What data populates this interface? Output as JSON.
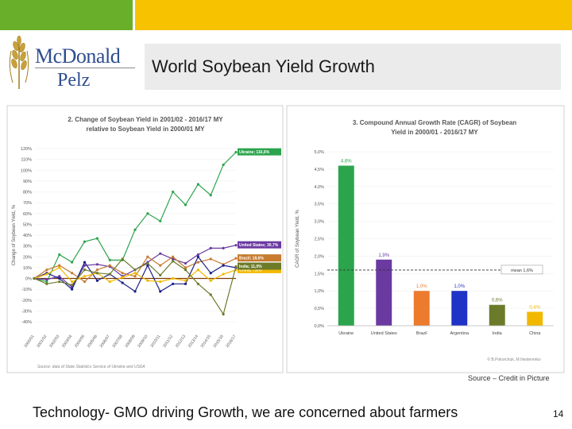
{
  "header": {
    "brand_line1": "McDonald",
    "brand_line2": "Pelz",
    "title": "World Soybean Yield Growth",
    "colors": {
      "green_bar": "#6aaf2a",
      "yellow_bar": "#f7c200",
      "brand_text": "#2e4d8f"
    }
  },
  "chart_data": [
    {
      "type": "line",
      "title": "2. Change of Soybean Yield in 2001/02 - 2016/17 MY relative to Soybean Yield in 2000/01 MY",
      "ylabel": "Change of Soybean Yield, %",
      "xlabel": "",
      "ylim": [
        -40,
        120
      ],
      "yticks": [
        -40,
        -30,
        -20,
        -10,
        0,
        10,
        20,
        30,
        40,
        50,
        60,
        70,
        80,
        90,
        100,
        110,
        120
      ],
      "categories": [
        "2000/01",
        "2001/02",
        "2002/03",
        "2003/04",
        "2004/05",
        "2005/06",
        "2006/07",
        "2007/08",
        "2008/09",
        "2009/10",
        "2010/11",
        "2011/12",
        "2012/13",
        "2013/14",
        "2014/15",
        "2015/16",
        "2016/17"
      ],
      "series": [
        {
          "name": "Ukraine; 116,6%",
          "color": "#2ca44d",
          "values": [
            0,
            -3,
            22,
            15,
            34,
            37,
            17,
            17,
            45,
            60,
            53,
            80,
            68,
            87,
            77,
            105,
            116.6
          ]
        },
        {
          "name": "United States; 30,7%",
          "color": "#6a3aa0",
          "values": [
            0,
            -1,
            2,
            -8,
            12,
            13,
            11,
            2,
            8,
            15,
            23,
            18,
            14,
            22,
            28,
            28,
            30.7
          ]
        },
        {
          "name": "Brazil; 18,6%",
          "color": "#c77b2f",
          "values": [
            0,
            8,
            12,
            5,
            -3,
            8,
            12,
            5,
            2,
            20,
            12,
            20,
            10,
            15,
            18,
            13,
            18.6
          ]
        },
        {
          "name": "Argentina; 10,0%",
          "color": "#1b1f8a",
          "values": [
            0,
            5,
            0,
            -10,
            15,
            -2,
            4,
            -4,
            -12,
            12,
            -12,
            -5,
            -5,
            20,
            5,
            12,
            10.0
          ]
        },
        {
          "name": "China; 7,8%",
          "color": "#f2b800",
          "values": [
            0,
            4,
            10,
            -3,
            2,
            5,
            -3,
            1,
            5,
            -2,
            -3,
            0,
            -2,
            8,
            -2,
            4,
            7.8
          ]
        },
        {
          "name": "India; 11,0%",
          "color": "#6b7b2a",
          "values": [
            0,
            -5,
            -3,
            -6,
            8,
            5,
            4,
            18,
            8,
            14,
            3,
            16,
            8,
            -5,
            -15,
            -33,
            11.0
          ]
        }
      ],
      "mean_series": {
        "color": "#7a3d0a",
        "values": [
          0,
          0,
          0,
          0,
          0,
          0,
          0,
          0,
          0,
          0,
          0,
          0,
          0,
          0,
          0,
          0,
          0
        ]
      },
      "source_note": "Source: data of State Statistics Service of Ukraine and USDA"
    },
    {
      "type": "bar",
      "title": "3. Compound Annual Growth Rate (CAGR) of Soybean Yield in 2000/01 - 2016/17 MY",
      "ylabel": "CAGR of Soybean Yield, %",
      "ylim": [
        0,
        5.0
      ],
      "yticks": [
        "0,0%",
        "0,5%",
        "1,0%",
        "1,5%",
        "2,0%",
        "2,5%",
        "3,0%",
        "3,5%",
        "4,0%",
        "4,5%",
        "5,0%"
      ],
      "categories": [
        "Ukraine",
        "United States",
        "Brazil",
        "Argentina",
        "India",
        "China"
      ],
      "values": [
        4.6,
        1.9,
        1.0,
        1.0,
        0.6,
        0.4
      ],
      "value_labels": [
        "4,6%",
        "1,9%",
        "1,0%",
        "1,0%",
        "0,6%",
        "0,4%"
      ],
      "colors": [
        "#2ca44d",
        "#6a3aa0",
        "#ec7b2e",
        "#1f33c7",
        "#6b7b2a",
        "#f2b800"
      ],
      "mean": {
        "value": 1.6,
        "label": "mean 1,6%"
      },
      "credit": "© B.Pokorchuk, M.Nesterenko"
    }
  ],
  "footer": {
    "source_credit": "Source – Credit in Picture",
    "tagline": "Technology- GMO driving Growth, we are concerned about farmers",
    "page_number": "14"
  }
}
